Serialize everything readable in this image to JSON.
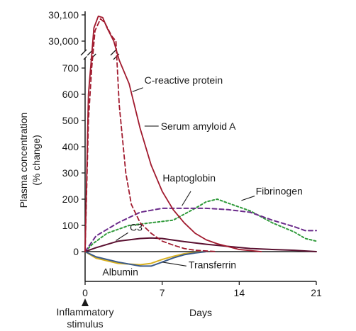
{
  "chart_data": {
    "type": "line",
    "ylabel": "Plasma concentration\n(% change)",
    "xlabel": "Days",
    "x_ticks": [
      0,
      7,
      14,
      21
    ],
    "x_tick_labels": [
      "0",
      "7",
      "14",
      "21"
    ],
    "y_ticks_lower": [
      0,
      100,
      200,
      300,
      400,
      500,
      600,
      700
    ],
    "y_ticks_upper": [
      "30,000",
      "30,100"
    ],
    "y_axis_break": "between 700 and 30,000",
    "event_annotation": "Inflammatory\nstimulus",
    "event_x": 0,
    "grid": false,
    "legend": "none (series labeled directly on curves)",
    "series": [
      {
        "name": "C-reactive protein",
        "color": "#a11a2e",
        "style": "solid",
        "points": [
          [
            0,
            0
          ],
          [
            0.3,
            600
          ],
          [
            0.6,
            750
          ],
          [
            0.8,
            30050
          ],
          [
            1.2,
            30095
          ],
          [
            1.6,
            30090
          ],
          [
            2.0,
            30050
          ],
          [
            2.6,
            30000
          ],
          [
            3.1,
            730
          ],
          [
            4.0,
            640
          ],
          [
            5.0,
            470
          ],
          [
            6.0,
            330
          ],
          [
            7.0,
            230
          ],
          [
            8.0,
            160
          ],
          [
            9.0,
            110
          ],
          [
            10.0,
            70
          ],
          [
            11.0,
            45
          ],
          [
            12.0,
            30
          ],
          [
            14.0,
            8
          ],
          [
            16.0,
            0
          ]
        ]
      },
      {
        "name": "Serum amyloid A",
        "color": "#a11a2e",
        "style": "dashed",
        "points": [
          [
            0,
            0
          ],
          [
            0.3,
            500
          ],
          [
            0.6,
            700
          ],
          [
            0.9,
            30040
          ],
          [
            1.4,
            30085
          ],
          [
            1.8,
            30070
          ],
          [
            2.4,
            30020
          ],
          [
            2.8,
            30000
          ],
          [
            3.1,
            560
          ],
          [
            3.7,
            300
          ],
          [
            4.2,
            180
          ],
          [
            5.0,
            110
          ],
          [
            6.0,
            70
          ],
          [
            7.0,
            40
          ],
          [
            8.0,
            25
          ],
          [
            9.0,
            12
          ],
          [
            10.0,
            5
          ],
          [
            12.0,
            0
          ]
        ]
      },
      {
        "name": "Haptoglobin",
        "color": "#6a2a8a",
        "style": "dashed",
        "points": [
          [
            0,
            0
          ],
          [
            1,
            60
          ],
          [
            3,
            110
          ],
          [
            5,
            150
          ],
          [
            7,
            165
          ],
          [
            9,
            165
          ],
          [
            11,
            165
          ],
          [
            13,
            160
          ],
          [
            15,
            150
          ],
          [
            17,
            120
          ],
          [
            19,
            95
          ],
          [
            20,
            80
          ],
          [
            21,
            80
          ]
        ]
      },
      {
        "name": "Fibrinogen",
        "color": "#2f9a3a",
        "style": "dotted",
        "points": [
          [
            0,
            0
          ],
          [
            0.7,
            30
          ],
          [
            2,
            70
          ],
          [
            4,
            100
          ],
          [
            6,
            110
          ],
          [
            8,
            120
          ],
          [
            10,
            165
          ],
          [
            11,
            190
          ],
          [
            12,
            200
          ],
          [
            13,
            185
          ],
          [
            15,
            155
          ],
          [
            17,
            110
          ],
          [
            19,
            75
          ],
          [
            20,
            50
          ],
          [
            21,
            40
          ]
        ]
      },
      {
        "name": "C3",
        "color": "#5a1030",
        "style": "solid",
        "points": [
          [
            0,
            0
          ],
          [
            1,
            15
          ],
          [
            3,
            40
          ],
          [
            5,
            50
          ],
          [
            6,
            52
          ],
          [
            7,
            50
          ],
          [
            9,
            38
          ],
          [
            11,
            28
          ],
          [
            13,
            20
          ],
          [
            15,
            12
          ],
          [
            17,
            8
          ],
          [
            19,
            5
          ],
          [
            21,
            0
          ]
        ]
      },
      {
        "name": "Albumin",
        "color": "#d8b020",
        "style": "solid",
        "points": [
          [
            0,
            0
          ],
          [
            1,
            -25
          ],
          [
            3,
            -45
          ],
          [
            5,
            -50
          ],
          [
            6,
            -45
          ],
          [
            7,
            -30
          ],
          [
            8,
            -18
          ],
          [
            9,
            -8
          ],
          [
            10,
            -3
          ],
          [
            11,
            0
          ]
        ]
      },
      {
        "name": "Transferrin",
        "color": "#3a5a8a",
        "style": "solid",
        "points": [
          [
            0,
            0
          ],
          [
            1,
            -20
          ],
          [
            3,
            -40
          ],
          [
            5,
            -55
          ],
          [
            6,
            -55
          ],
          [
            7,
            -40
          ],
          [
            8,
            -24
          ],
          [
            9,
            -12
          ],
          [
            10,
            -5
          ],
          [
            11,
            0
          ]
        ]
      }
    ]
  }
}
